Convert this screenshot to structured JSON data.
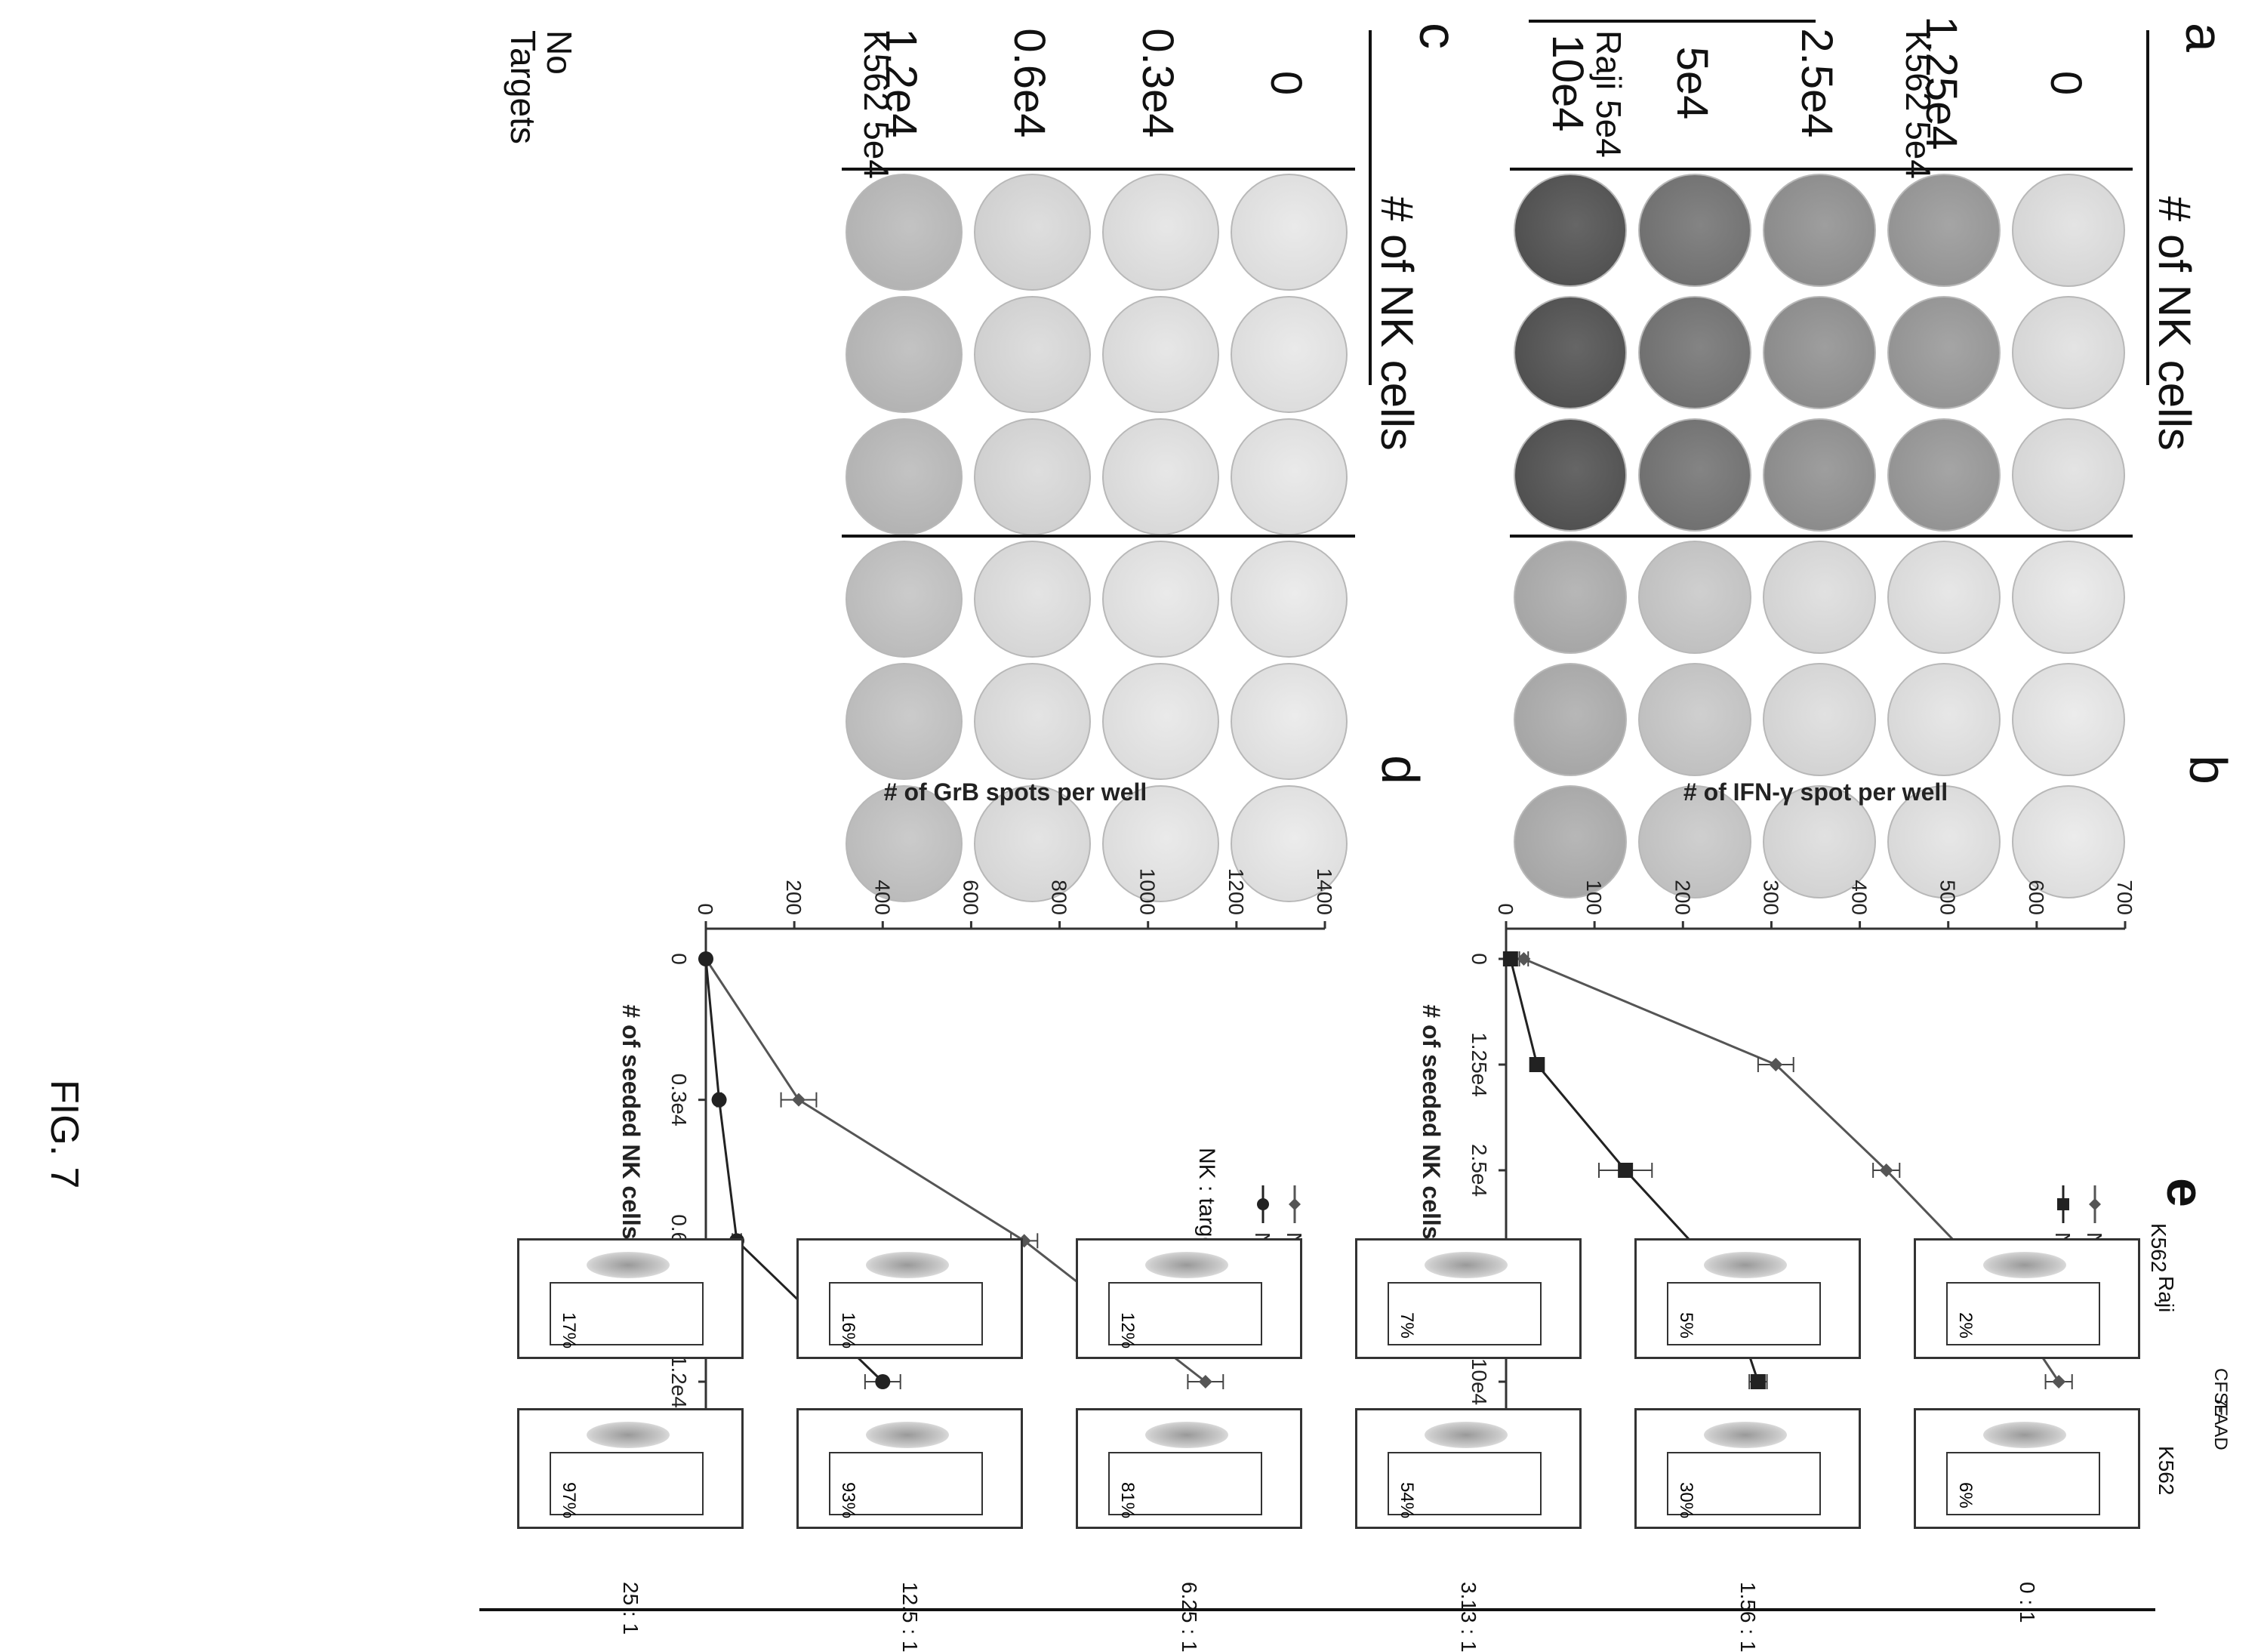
{
  "figure": {
    "label": "FIG. 7"
  },
  "panel_a": {
    "letter": "a",
    "header": "# of NK cells",
    "columns": [
      "0",
      "1.25e4",
      "2.5e4",
      "5e4",
      "10e4"
    ],
    "rows": [
      {
        "label": "K562 5e4",
        "intensity": [
          0.08,
          0.5,
          0.55,
          0.72,
          0.92
        ]
      },
      {
        "label": "Raji 5e4",
        "intensity": [
          0.03,
          0.06,
          0.1,
          0.22,
          0.38
        ]
      }
    ]
  },
  "panel_c": {
    "letter": "c",
    "header": "# of NK cells",
    "columns": [
      "0",
      "0.3e4",
      "0.6e4",
      "1.2e4"
    ],
    "rows": [
      {
        "label": "K562 5e4",
        "intensity": [
          0.04,
          0.06,
          0.12,
          0.3
        ]
      },
      {
        "label": "No Targets",
        "intensity": [
          0.03,
          0.04,
          0.08,
          0.25
        ]
      }
    ]
  },
  "panel_b": {
    "letter": "b",
    "chart_data": {
      "type": "line",
      "xlabel": "# of seeded NK cells per well",
      "ylabel": "# of IFN-γ spot per well",
      "categories": [
        "0",
        "1.25e4",
        "2.5e4",
        "5e4",
        "10e4"
      ],
      "ylim": [
        0,
        700
      ],
      "yticks": [
        0,
        100,
        200,
        300,
        400,
        500,
        600,
        700
      ],
      "series": [
        {
          "name": "NK vs K562",
          "values": [
            20,
            305,
            430,
            545,
            625
          ],
          "errors": [
            5,
            20,
            15,
            20,
            15
          ],
          "marker": "diamond"
        },
        {
          "name": "NK vs Raji",
          "values": [
            5,
            35,
            135,
            245,
            285
          ],
          "errors": [
            3,
            8,
            30,
            25,
            10
          ],
          "marker": "square"
        }
      ]
    }
  },
  "panel_d": {
    "letter": "d",
    "chart_data": {
      "type": "line",
      "xlabel": "# of seeded NK cells per well",
      "ylabel": "# of GrB spots per well",
      "categories": [
        "0",
        "0.3e4",
        "0.6e4",
        "1.2e4"
      ],
      "ylim": [
        0,
        1400
      ],
      "yticks": [
        0,
        200,
        400,
        600,
        800,
        1000,
        1200,
        1400
      ],
      "series": [
        {
          "name": "NK vs K562",
          "values": [
            0,
            210,
            720,
            1130
          ],
          "errors": [
            0,
            40,
            30,
            40
          ],
          "marker": "diamond"
        },
        {
          "name": "NK only",
          "values": [
            0,
            30,
            70,
            400
          ],
          "errors": [
            0,
            5,
            10,
            40
          ],
          "marker": "circle"
        }
      ]
    }
  },
  "panel_e": {
    "letter": "e",
    "header": "NK : target ratio",
    "x_axis": "CFSE",
    "y_axis": "7-AAD",
    "ratios": [
      "0 : 1",
      "1.56 : 1",
      "3.13 : 1",
      "6.25 : 1",
      "12.5 : 1",
      "25 : 1"
    ],
    "rows": [
      {
        "label": "K562",
        "percents": [
          "6%",
          "30%",
          "54%",
          "81%",
          "93%",
          "97%"
        ]
      },
      {
        "label": "Raji",
        "percents": [
          "2%",
          "5%",
          "7%",
          "12%",
          "16%",
          "17%"
        ]
      }
    ]
  }
}
